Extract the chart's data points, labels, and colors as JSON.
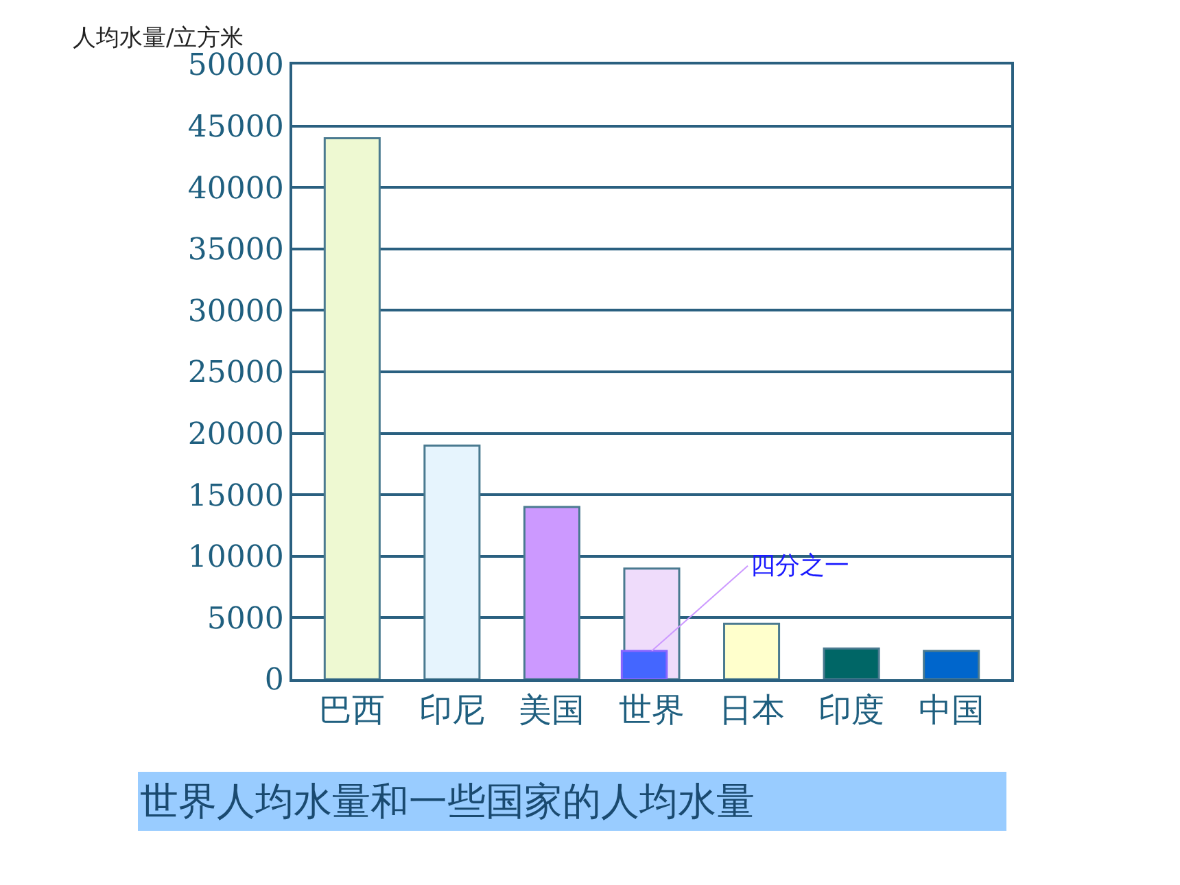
{
  "chart_data": {
    "type": "bar",
    "title": "世界人均水量和一些国家的人均水量",
    "ylabel": "人均水量/立方米",
    "categories": [
      "巴西",
      "印尼",
      "美国",
      "世界",
      "日本",
      "印度",
      "中国"
    ],
    "series": [
      {
        "colors": [
          "#eef9d2",
          "#e6f4fd",
          "#cc99ff",
          "#efdcfb",
          "#ffffcc",
          "#006666",
          "#0066cc"
        ],
        "values": [
          44000,
          19000,
          14000,
          9000,
          4500,
          2500,
          2300
        ]
      },
      {
        "color": "#4466ff",
        "values": [
          null,
          null,
          null,
          2300,
          null,
          null,
          null
        ]
      }
    ],
    "annotations": [
      {
        "text": "四分之一",
        "x": "世界",
        "y": 2300
      }
    ],
    "ylim": [
      0,
      50000
    ],
    "yticks": [
      0,
      5000,
      10000,
      15000,
      20000,
      25000,
      30000,
      35000,
      40000,
      45000,
      50000
    ],
    "grid": "y"
  }
}
